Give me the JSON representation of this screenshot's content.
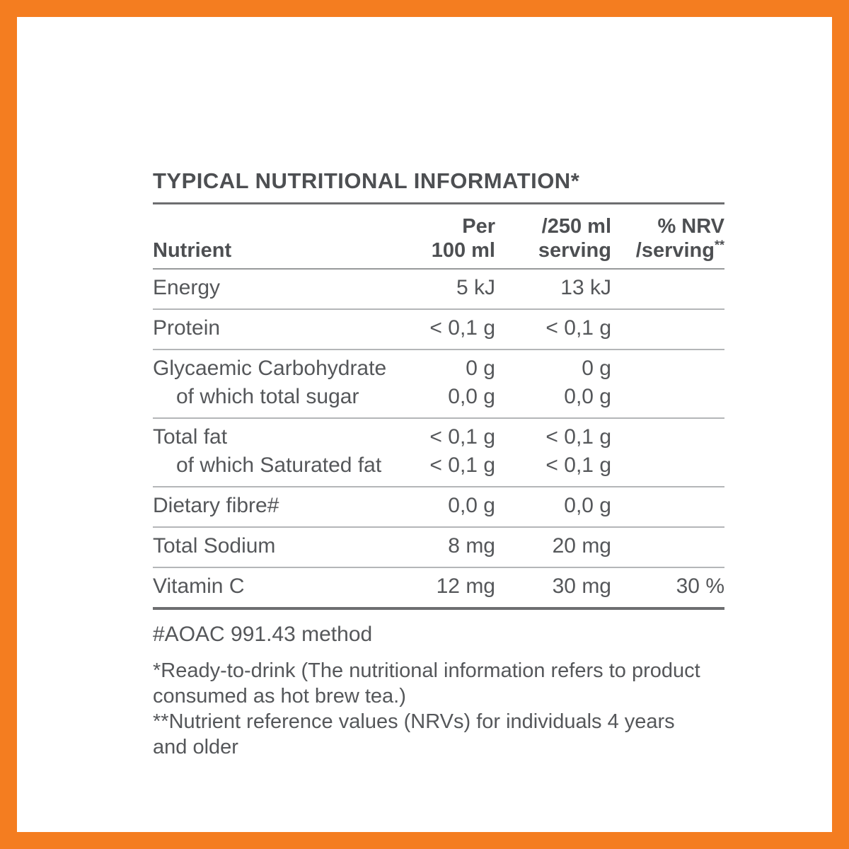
{
  "title": "TYPICAL NUTRITIONAL INFORMATION*",
  "colors": {
    "frame_orange": "#f47d20",
    "text_gray": "#55575a",
    "rule_dark": "#6d6e70",
    "rule_light": "#b4b6b8"
  },
  "table": {
    "header": {
      "nutrient": "Nutrient",
      "col2_line1": "Per",
      "col2_line2": "100 ml",
      "col3_line1": "/250 ml",
      "col3_line2": "serving",
      "col4_line1": "% NRV",
      "col4_line2": "/serving",
      "col4_sup": "**"
    },
    "rows": [
      {
        "lines": [
          {
            "nutrient": "Energy",
            "per_100ml": "5 kJ",
            "per_250ml": "13 kJ",
            "nrv": ""
          }
        ]
      },
      {
        "lines": [
          {
            "nutrient": "Protein",
            "per_100ml": "< 0,1 g",
            "per_250ml": "< 0,1 g",
            "nrv": ""
          }
        ]
      },
      {
        "lines": [
          {
            "nutrient": "Glycaemic Carbohydrate",
            "per_100ml": "0 g",
            "per_250ml": "0 g",
            "nrv": ""
          },
          {
            "nutrient": "of which total sugar",
            "per_100ml": "0,0 g",
            "per_250ml": "0,0 g",
            "nrv": ""
          }
        ]
      },
      {
        "lines": [
          {
            "nutrient": "Total fat",
            "per_100ml": "< 0,1 g",
            "per_250ml": "< 0,1 g",
            "nrv": ""
          },
          {
            "nutrient": "of which Saturated fat",
            "per_100ml": "< 0,1 g",
            "per_250ml": "< 0,1 g",
            "nrv": ""
          }
        ]
      },
      {
        "lines": [
          {
            "nutrient": "Dietary fibre#",
            "per_100ml": "0,0 g",
            "per_250ml": "0,0 g",
            "nrv": ""
          }
        ]
      },
      {
        "lines": [
          {
            "nutrient": "Total Sodium",
            "per_100ml": "8 mg",
            "per_250ml": "20 mg",
            "nrv": ""
          }
        ]
      },
      {
        "lines": [
          {
            "nutrient": "Vitamin C",
            "per_100ml": "12 mg",
            "per_250ml": "30 mg",
            "nrv": "30 %"
          }
        ]
      }
    ]
  },
  "footnotes": {
    "method": "#AOAC 991.43 method",
    "ready": "*Ready-to-drink (The nutritional information refers to product consumed as hot brew tea.)",
    "nrv": "**Nutrient reference values (NRVs) for individuals 4 years and older"
  }
}
